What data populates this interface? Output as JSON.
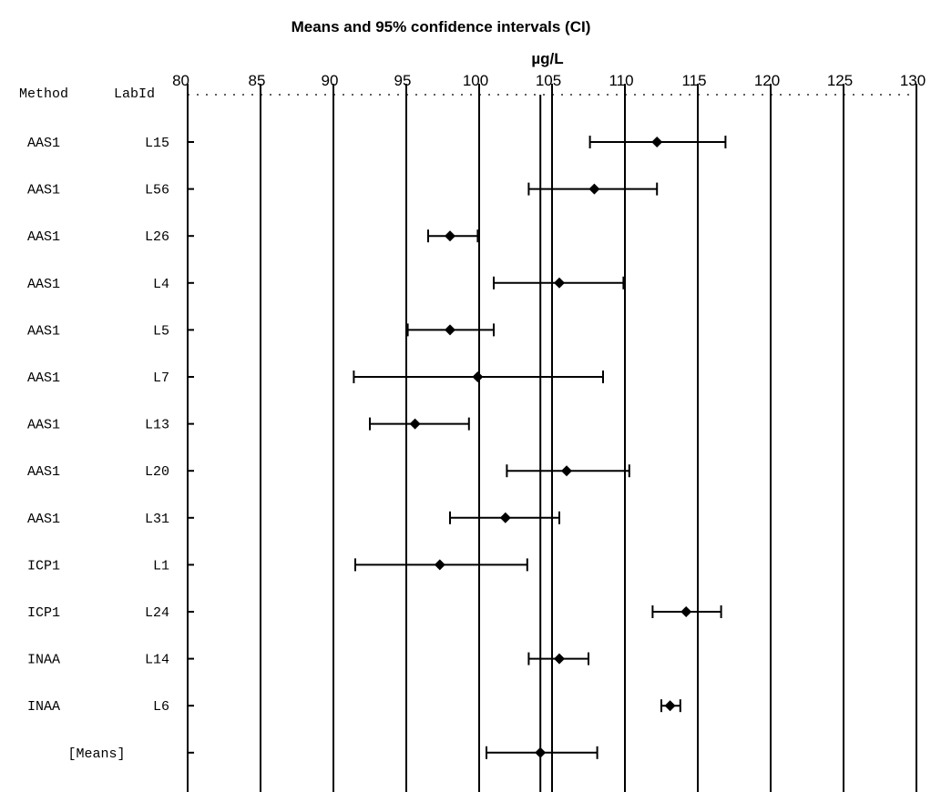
{
  "chart_data": {
    "type": "forest",
    "title": "Means and 95% confidence intervals (CI)",
    "unit": "µg/L",
    "xlim": [
      80,
      130
    ],
    "xticks": [
      80,
      85,
      90,
      95,
      100,
      105,
      110,
      115,
      120,
      125,
      130
    ],
    "reference_lines": [
      104.2
    ],
    "column_headers": {
      "method": "Method",
      "labid": "LabId"
    },
    "rows": [
      {
        "method": "AAS1",
        "labid": "L15",
        "mean": 112.2,
        "lower": 107.6,
        "upper": 116.9
      },
      {
        "method": "AAS1",
        "labid": "L56",
        "mean": 107.9,
        "lower": 103.4,
        "upper": 112.2
      },
      {
        "method": "AAS1",
        "labid": "L26",
        "mean": 98.0,
        "lower": 96.5,
        "upper": 99.9
      },
      {
        "method": "AAS1",
        "labid": "L4",
        "mean": 105.5,
        "lower": 101.0,
        "upper": 109.9
      },
      {
        "method": "AAS1",
        "labid": "L5",
        "mean": 98.0,
        "lower": 95.1,
        "upper": 101.0
      },
      {
        "method": "AAS1",
        "labid": "L7",
        "mean": 99.9,
        "lower": 91.4,
        "upper": 108.5
      },
      {
        "method": "AAS1",
        "labid": "L13",
        "mean": 95.6,
        "lower": 92.5,
        "upper": 99.3
      },
      {
        "method": "AAS1",
        "labid": "L20",
        "mean": 106.0,
        "lower": 101.9,
        "upper": 110.3
      },
      {
        "method": "AAS1",
        "labid": "L31",
        "mean": 101.8,
        "lower": 98.0,
        "upper": 105.5
      },
      {
        "method": "ICP1",
        "labid": "L1",
        "mean": 97.3,
        "lower": 91.5,
        "upper": 103.3
      },
      {
        "method": "ICP1",
        "labid": "L24",
        "mean": 114.2,
        "lower": 111.9,
        "upper": 116.6
      },
      {
        "method": "INAA",
        "labid": "L14",
        "mean": 105.5,
        "lower": 103.4,
        "upper": 107.5
      },
      {
        "method": "INAA",
        "labid": "L6",
        "mean": 113.1,
        "lower": 112.5,
        "upper": 113.8
      },
      {
        "method": "",
        "labid": "[Means]",
        "mean": 104.2,
        "lower": 100.5,
        "upper": 108.1
      }
    ]
  }
}
